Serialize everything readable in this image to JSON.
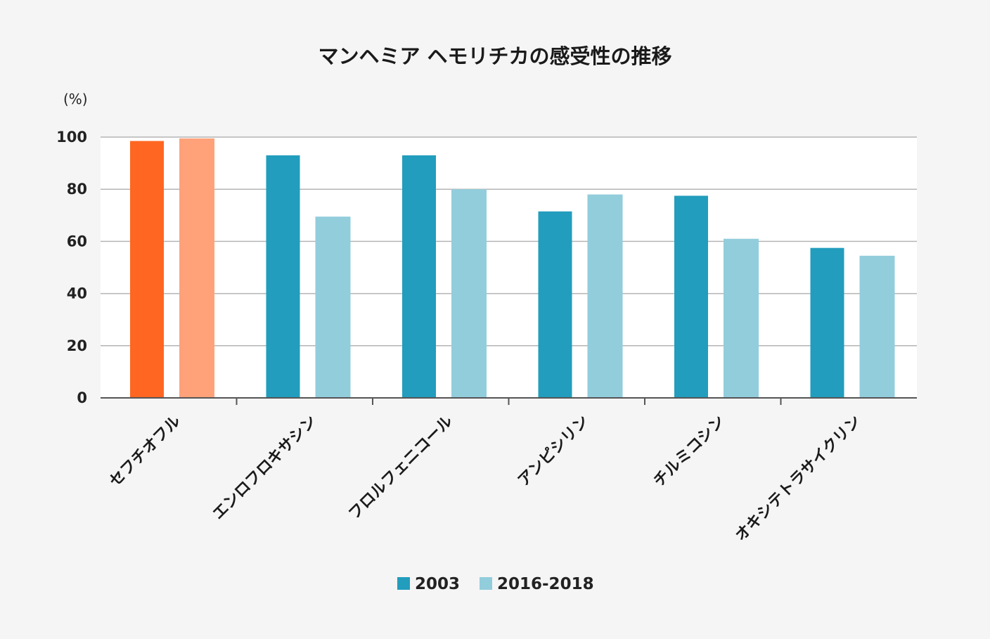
{
  "chart_data": {
    "type": "bar",
    "title": "マンヘミア ヘモリチカの感受性の推移",
    "ylabel": "(%)",
    "xlabel": "",
    "ylim": [
      0,
      100
    ],
    "yticks": [
      0,
      20,
      40,
      60,
      80,
      100
    ],
    "grid": true,
    "legend_position": "bottom-center",
    "categories": [
      "セフチオフル",
      "エンロフロキサシン",
      "フロルフェニコール",
      "アンピシリン",
      "チルミコシン",
      "オキシテトラサイクリン"
    ],
    "series": [
      {
        "name": "2003",
        "color": "#229dbd",
        "values": [
          98.5,
          93,
          93,
          71.5,
          77.5,
          57.5
        ]
      },
      {
        "name": "2016-2018",
        "color": "#92cddc",
        "values": [
          99.5,
          69.5,
          80,
          78,
          61,
          54.5
        ]
      }
    ],
    "highlight": {
      "category_index": 0,
      "colors": [
        "#ff6622",
        "#ffa27a"
      ]
    },
    "background_color": "#f5f5f5",
    "plot_background_color": "#ffffff",
    "grid_color": "#b4b4b4"
  }
}
